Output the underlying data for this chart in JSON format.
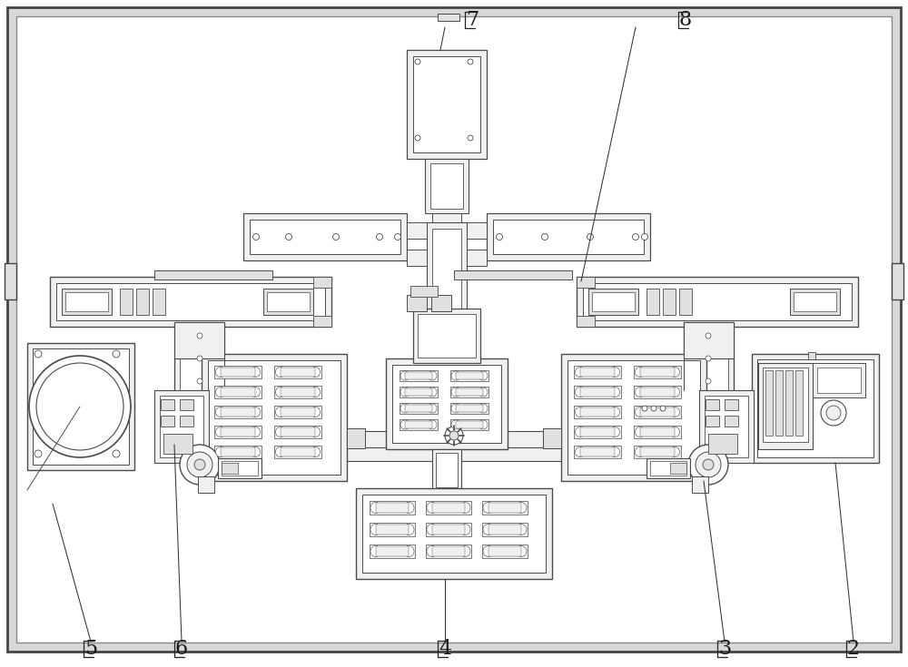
{
  "bg_color": "#ffffff",
  "frame_bg": "#ffffff",
  "lc": "#4a4a4a",
  "lc_thin": "#666666",
  "fill_white": "#ffffff",
  "fill_light": "#f0f0f0",
  "fill_mid": "#e0e0e0",
  "fill_dark": "#c8c8c8",
  "fill_darker": "#b0b0b0"
}
